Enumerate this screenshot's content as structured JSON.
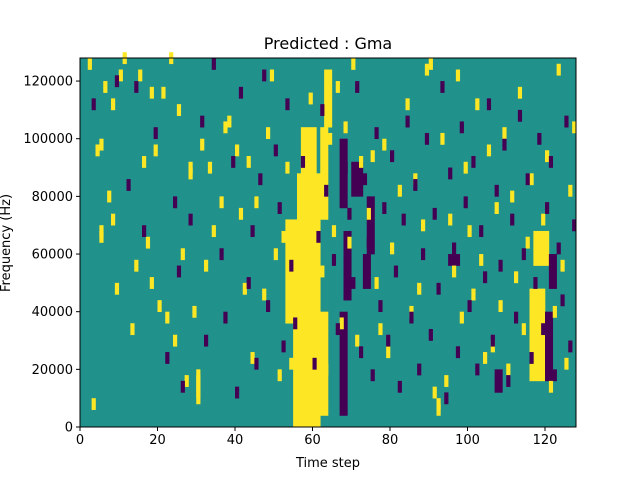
{
  "chart_data": {
    "type": "heatmap",
    "title": "Predicted : Gma",
    "xlabel": "Time step",
    "ylabel": "Frequency (Hz)",
    "xlim": [
      0,
      128
    ],
    "ylim": [
      0,
      128000
    ],
    "xticks": [
      0,
      20,
      40,
      60,
      80,
      100,
      120
    ],
    "yticks": [
      0,
      20000,
      40000,
      60000,
      80000,
      100000,
      120000
    ],
    "n_time": 128,
    "n_freq": 64,
    "grid": false,
    "legend": "none",
    "values": [
      -1,
      0,
      1
    ],
    "colors": {
      "-1": "#440154",
      "0": "#21918c",
      "1": "#fde725"
    },
    "yellow_cells": [
      [
        2,
        62
      ],
      [
        3,
        3
      ],
      [
        4,
        47
      ],
      [
        5,
        48
      ],
      [
        5,
        32
      ],
      [
        5,
        33
      ],
      [
        6,
        58
      ],
      [
        7,
        39
      ],
      [
        8,
        55
      ],
      [
        8,
        35
      ],
      [
        9,
        23
      ],
      [
        10,
        60
      ],
      [
        11,
        63
      ],
      [
        13,
        16
      ],
      [
        14,
        27
      ],
      [
        15,
        60
      ],
      [
        16,
        45
      ],
      [
        17,
        31
      ],
      [
        18,
        57
      ],
      [
        18,
        24
      ],
      [
        19,
        47
      ],
      [
        20,
        20
      ],
      [
        21,
        57
      ],
      [
        22,
        18
      ],
      [
        23,
        63
      ],
      [
        24,
        14
      ],
      [
        25,
        54
      ],
      [
        26,
        29
      ],
      [
        27,
        7
      ],
      [
        28,
        43
      ],
      [
        28,
        44
      ],
      [
        29,
        19
      ],
      [
        30,
        4
      ],
      [
        30,
        5
      ],
      [
        30,
        6
      ],
      [
        30,
        7
      ],
      [
        30,
        8
      ],
      [
        31,
        48
      ],
      [
        32,
        27
      ],
      [
        33,
        44
      ],
      [
        34,
        33
      ],
      [
        36,
        38
      ],
      [
        37,
        51
      ],
      [
        38,
        52
      ],
      [
        40,
        47
      ],
      [
        41,
        36
      ],
      [
        42,
        23
      ],
      [
        43,
        45
      ],
      [
        44,
        11
      ],
      [
        45,
        38
      ],
      [
        47,
        22
      ],
      [
        48,
        50
      ],
      [
        49,
        60
      ],
      [
        50,
        29
      ],
      [
        51,
        8
      ],
      [
        52,
        32
      ],
      [
        53,
        44
      ],
      [
        54,
        10
      ],
      [
        55,
        21
      ],
      [
        56,
        36
      ],
      [
        57,
        42
      ],
      [
        58,
        12
      ],
      [
        59,
        56
      ],
      [
        60,
        15
      ],
      [
        61,
        40
      ],
      [
        62,
        26
      ],
      [
        63,
        9
      ],
      [
        64,
        49
      ],
      [
        65,
        33
      ],
      [
        66,
        58
      ],
      [
        67,
        17
      ],
      [
        68,
        51
      ],
      [
        69,
        31
      ],
      [
        70,
        62
      ],
      [
        71,
        14
      ],
      [
        72,
        45
      ],
      [
        74,
        36
      ],
      [
        75,
        46
      ],
      [
        76,
        24
      ],
      [
        77,
        16
      ],
      [
        78,
        48
      ],
      [
        79,
        12
      ],
      [
        80,
        30
      ],
      [
        82,
        40
      ],
      [
        84,
        55
      ],
      [
        85,
        19
      ],
      [
        86,
        42
      ],
      [
        87,
        23
      ],
      [
        88,
        34
      ],
      [
        89,
        61
      ],
      [
        90,
        62
      ],
      [
        91,
        5
      ],
      [
        92,
        2
      ],
      [
        92,
        3
      ],
      [
        93,
        49
      ],
      [
        94,
        7
      ],
      [
        95,
        35
      ],
      [
        96,
        26
      ],
      [
        97,
        60
      ],
      [
        98,
        18
      ],
      [
        99,
        44
      ],
      [
        100,
        33
      ],
      [
        101,
        22
      ],
      [
        102,
        55
      ],
      [
        103,
        28
      ],
      [
        104,
        11
      ],
      [
        105,
        47
      ],
      [
        106,
        13
      ],
      [
        107,
        37
      ],
      [
        108,
        20
      ],
      [
        109,
        50
      ],
      [
        110,
        9
      ],
      [
        111,
        39
      ],
      [
        112,
        25
      ],
      [
        113,
        57
      ],
      [
        114,
        16
      ],
      [
        115,
        31
      ],
      [
        116,
        42
      ],
      [
        117,
        22
      ],
      [
        118,
        12
      ],
      [
        119,
        35
      ],
      [
        120,
        46
      ],
      [
        121,
        6
      ],
      [
        122,
        19
      ],
      [
        123,
        61
      ],
      [
        124,
        27
      ],
      [
        125,
        10
      ],
      [
        126,
        40
      ],
      [
        127,
        51
      ]
    ],
    "dark_cells": [
      [
        3,
        55
      ],
      [
        9,
        59
      ],
      [
        12,
        41
      ],
      [
        14,
        58
      ],
      [
        16,
        33
      ],
      [
        19,
        50
      ],
      [
        22,
        11
      ],
      [
        24,
        38
      ],
      [
        25,
        26
      ],
      [
        26,
        6
      ],
      [
        28,
        35
      ],
      [
        31,
        52
      ],
      [
        32,
        14
      ],
      [
        34,
        62
      ],
      [
        36,
        29
      ],
      [
        37,
        18
      ],
      [
        39,
        45
      ],
      [
        40,
        5
      ],
      [
        41,
        57
      ],
      [
        43,
        24
      ],
      [
        44,
        33
      ],
      [
        45,
        10
      ],
      [
        46,
        42
      ],
      [
        47,
        60
      ],
      [
        48,
        20
      ],
      [
        50,
        47
      ],
      [
        51,
        37
      ],
      [
        52,
        13
      ],
      [
        53,
        55
      ],
      [
        54,
        27
      ],
      [
        55,
        17
      ],
      [
        57,
        45
      ],
      [
        60,
        10
      ],
      [
        61,
        32
      ],
      [
        62,
        54
      ],
      [
        63,
        40
      ],
      [
        65,
        28
      ],
      [
        66,
        16
      ],
      [
        68,
        44
      ],
      [
        69,
        36
      ],
      [
        70,
        24
      ],
      [
        71,
        58
      ],
      [
        72,
        12
      ],
      [
        73,
        42
      ],
      [
        74,
        31
      ],
      [
        75,
        8
      ],
      [
        76,
        50
      ],
      [
        77,
        20
      ],
      [
        78,
        37
      ],
      [
        79,
        14
      ],
      [
        80,
        46
      ],
      [
        81,
        26
      ],
      [
        82,
        6
      ],
      [
        83,
        35
      ],
      [
        84,
        52
      ],
      [
        85,
        18
      ],
      [
        86,
        41
      ],
      [
        87,
        9
      ],
      [
        88,
        29
      ],
      [
        89,
        49
      ],
      [
        90,
        15
      ],
      [
        91,
        36
      ],
      [
        92,
        23
      ],
      [
        93,
        58
      ],
      [
        94,
        4
      ],
      [
        95,
        43
      ],
      [
        96,
        30
      ],
      [
        97,
        12
      ],
      [
        98,
        51
      ],
      [
        99,
        38
      ],
      [
        100,
        20
      ],
      [
        101,
        45
      ],
      [
        102,
        9
      ],
      [
        103,
        33
      ],
      [
        104,
        25
      ],
      [
        105,
        55
      ],
      [
        106,
        14
      ],
      [
        107,
        40
      ],
      [
        108,
        27
      ],
      [
        109,
        48
      ],
      [
        110,
        7
      ],
      [
        111,
        35
      ],
      [
        112,
        18
      ],
      [
        113,
        53
      ],
      [
        114,
        29
      ],
      [
        115,
        42
      ],
      [
        116,
        11
      ],
      [
        117,
        24
      ],
      [
        118,
        49
      ],
      [
        119,
        16
      ],
      [
        120,
        37
      ],
      [
        121,
        45
      ],
      [
        122,
        8
      ],
      [
        123,
        30
      ],
      [
        124,
        21
      ],
      [
        125,
        52
      ],
      [
        126,
        13
      ],
      [
        127,
        34
      ]
    ],
    "yellow_bands": [
      {
        "x0": 55,
        "x1": 62,
        "y0": 0,
        "y1": 30
      },
      {
        "x0": 56,
        "x1": 62,
        "y0": 30,
        "y1": 44
      },
      {
        "x0": 57,
        "x1": 61,
        "y0": 44,
        "y1": 52
      },
      {
        "x0": 62,
        "x1": 64,
        "y0": 36,
        "y1": 52
      },
      {
        "x0": 63,
        "x1": 65,
        "y0": 52,
        "y1": 62
      },
      {
        "x0": 53,
        "x1": 56,
        "y0": 18,
        "y1": 36
      },
      {
        "x0": 60,
        "x1": 64,
        "y0": 2,
        "y1": 20
      },
      {
        "x0": 116,
        "x1": 120,
        "y0": 8,
        "y1": 24
      },
      {
        "x0": 117,
        "x1": 121,
        "y0": 28,
        "y1": 34
      }
    ],
    "dark_bands": [
      {
        "x0": 67,
        "x1": 69,
        "y0": 2,
        "y1": 20
      },
      {
        "x0": 68,
        "x1": 70,
        "y0": 22,
        "y1": 34
      },
      {
        "x0": 67,
        "x1": 69,
        "y0": 38,
        "y1": 50
      },
      {
        "x0": 70,
        "x1": 73,
        "y0": 40,
        "y1": 46
      },
      {
        "x0": 74,
        "x1": 76,
        "y0": 30,
        "y1": 40
      },
      {
        "x0": 73,
        "x1": 75,
        "y0": 24,
        "y1": 30
      },
      {
        "x0": 95,
        "x1": 98,
        "y0": 28,
        "y1": 30
      },
      {
        "x0": 107,
        "x1": 109,
        "y0": 6,
        "y1": 10
      },
      {
        "x0": 120,
        "x1": 122,
        "y0": 8,
        "y1": 20
      },
      {
        "x0": 121,
        "x1": 123,
        "y0": 24,
        "y1": 30
      }
    ]
  }
}
